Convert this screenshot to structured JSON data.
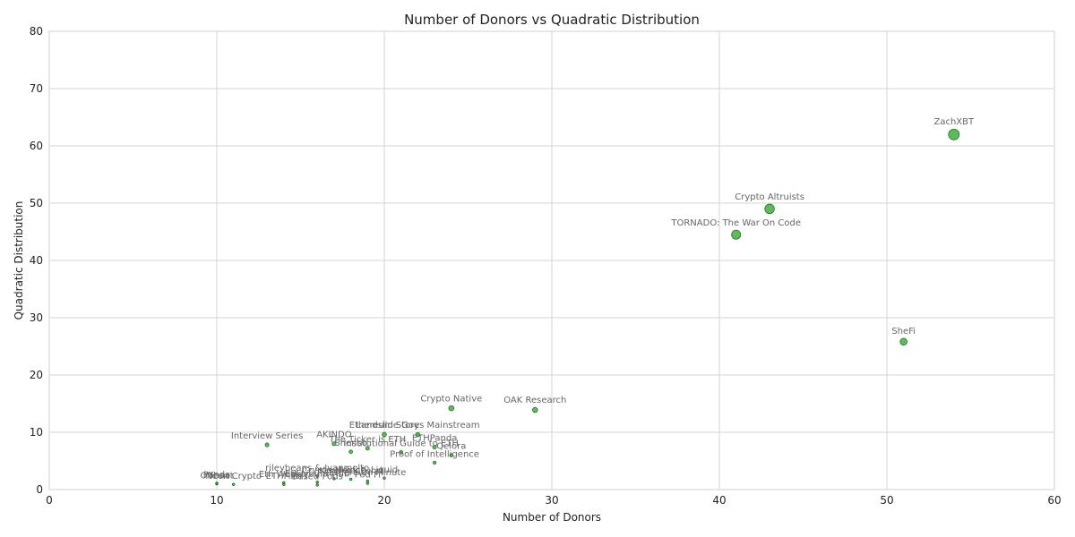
{
  "chart_data": {
    "type": "scatter",
    "title": "Number of Donors vs Quadratic Distribution",
    "xlabel": "Number of Donors",
    "ylabel": "Quadratic Distribution",
    "xlim": [
      0,
      60
    ],
    "ylim": [
      0,
      80
    ],
    "xticks": [
      0,
      10,
      20,
      30,
      40,
      50,
      60
    ],
    "yticks": [
      0,
      10,
      20,
      30,
      40,
      50,
      60,
      70,
      80
    ],
    "grid": true,
    "color": "#2ca02c",
    "points": [
      {
        "label": "ZachXBT",
        "x": 54,
        "y": 62.0
      },
      {
        "label": "Crypto Altruists",
        "x": 43,
        "y": 49.0
      },
      {
        "label": "TORNADO: The War On Code",
        "x": 41,
        "y": 44.5
      },
      {
        "label": "SheFi",
        "x": 51,
        "y": 25.8
      },
      {
        "label": "Crypto Native",
        "x": 24,
        "y": 14.2
      },
      {
        "label": "OAK Research",
        "x": 29,
        "y": 13.9
      },
      {
        "label": "Ethereum Story",
        "x": 20,
        "y": 9.6
      },
      {
        "label": "Landslide Goes Mainstream",
        "x": 22,
        "y": 9.6
      },
      {
        "label": "Interview Series",
        "x": 13,
        "y": 7.8
      },
      {
        "label": "AKINDO",
        "x": 17,
        "y": 8.0
      },
      {
        "label": "The Ticker is ETH",
        "x": 19,
        "y": 7.2
      },
      {
        "label": "ETHPanda",
        "x": 23,
        "y": 7.4
      },
      {
        "label": "Shenso",
        "x": 18,
        "y": 6.6
      },
      {
        "label": "Institutional Guide to ETH",
        "x": 21,
        "y": 6.5
      },
      {
        "label": "Qelora",
        "x": 24,
        "y": 6.0
      },
      {
        "label": "Proof of Intelligence",
        "x": 23,
        "y": 4.7
      },
      {
        "label": "rileybeans & Ivanmolto",
        "x": 16,
        "y": 2.3
      },
      {
        "label": "Crypto Mexico",
        "x": 17,
        "y": 1.9
      },
      {
        "label": "Kendrick Fund",
        "x": 18,
        "y": 1.8
      },
      {
        "label": "Liquid",
        "x": 20,
        "y": 2.0
      },
      {
        "label": "Ethereum Minute",
        "x": 19,
        "y": 1.5
      },
      {
        "label": "Ethereum Hub",
        "x": 16,
        "y": 1.3
      },
      {
        "label": "Eth Weekly",
        "x": 14,
        "y": 1.2
      },
      {
        "label": "Pod Fi",
        "x": 19,
        "y": 1.1
      },
      {
        "label": "Based Pods",
        "x": 16,
        "y": 0.8
      },
      {
        "label": "ETHFilm",
        "x": 14,
        "y": 0.9
      },
      {
        "label": "Panda",
        "x": 10,
        "y": 1.1
      },
      {
        "label": "Offbeat",
        "x": 10,
        "y": 1.0
      },
      {
        "label": "Neon Crypto",
        "x": 11,
        "y": 0.9
      }
    ]
  }
}
